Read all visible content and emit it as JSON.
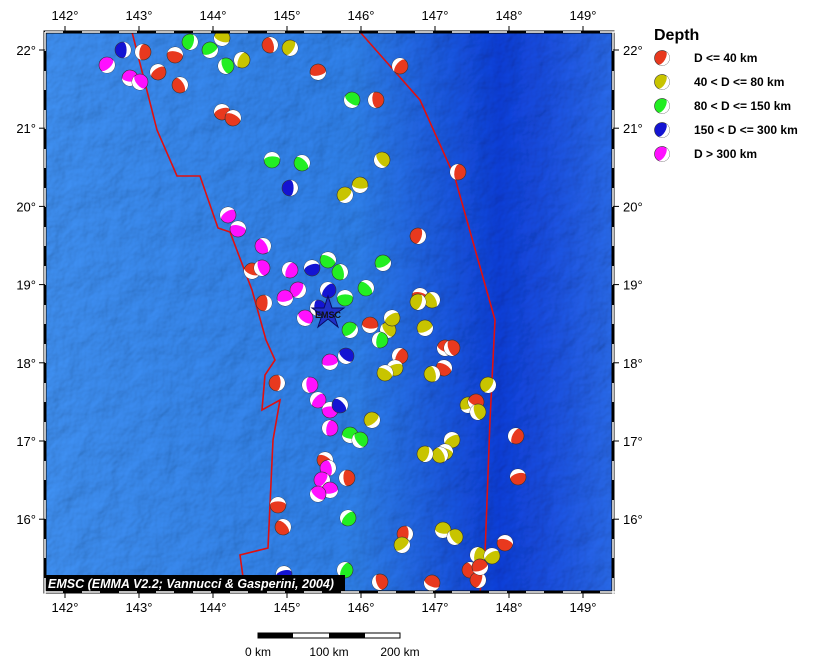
{
  "map": {
    "lon_labels": [
      "142°",
      "143°",
      "144°",
      "145°",
      "146°",
      "147°",
      "148°",
      "149°"
    ],
    "lat_labels": [
      "22°",
      "21°",
      "20°",
      "19°",
      "18°",
      "17°",
      "16°"
    ],
    "credit": "EMSC (EMMA V2.2; Vannucci & Gasperini, 2004)",
    "station_label": "EMSC",
    "scale_labels": [
      "0 km",
      "100 km",
      "200 km"
    ],
    "legend": {
      "title": "Depth",
      "entries": [
        {
          "label": "D <= 40 km",
          "color": "#e8391e"
        },
        {
          "label": "40 < D <= 80 km",
          "color": "#c8c400"
        },
        {
          "label": "80 < D <= 150 km",
          "color": "#22ee22"
        },
        {
          "label": "150 < D <= 300 km",
          "color": "#1414d2"
        },
        {
          "label": "D > 300 km",
          "color": "#ff10ff"
        }
      ]
    }
  }
}
